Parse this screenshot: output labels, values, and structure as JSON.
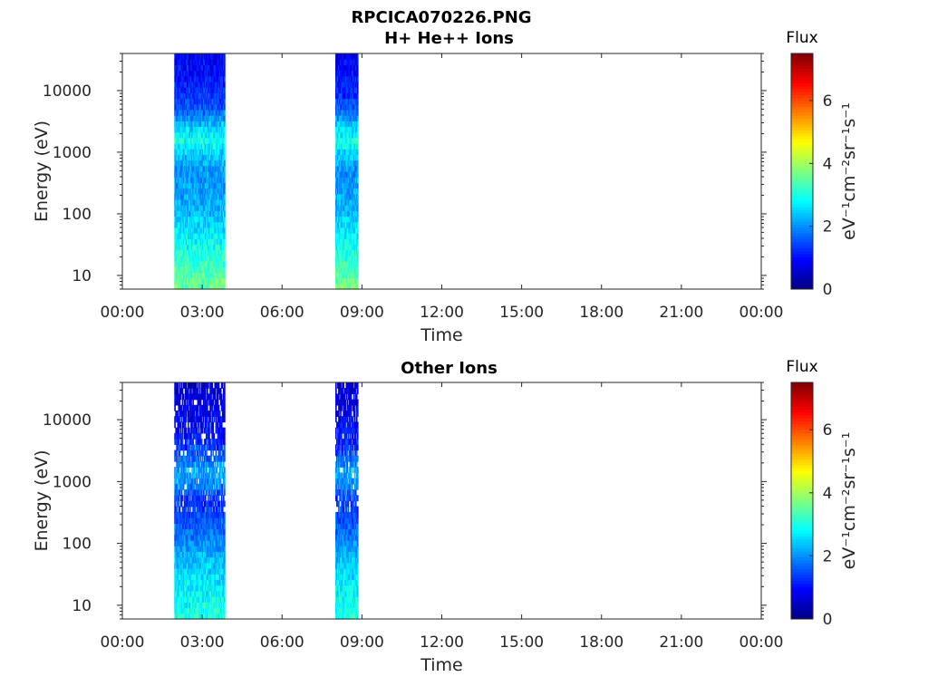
{
  "figure": {
    "title_line1": "RPCICA070226.PNG"
  },
  "colors": {
    "colormap": [
      "#00007f",
      "#0000ff",
      "#007fff",
      "#00ffff",
      "#7fff7f",
      "#ffff00",
      "#ff7f00",
      "#ff0000",
      "#7f0000"
    ]
  },
  "chart_data": [
    {
      "type": "heatmap",
      "title": "H+ He++ Ions",
      "xlabel": "Time",
      "ylabel": "Energy (eV)",
      "x_tick_labels": [
        "00:00",
        "03:00",
        "06:00",
        "09:00",
        "12:00",
        "15:00",
        "18:00",
        "21:00",
        "00:00"
      ],
      "x_range_hours": [
        0,
        24
      ],
      "y_scale": "log",
      "y_range": [
        6,
        40000
      ],
      "y_tick_values": [
        10,
        100,
        1000,
        10000
      ],
      "y_tick_labels": [
        "10",
        "100",
        "1000",
        "10000"
      ],
      "colorbar": {
        "title": "Flux",
        "unit_label": "eV⁻¹cm⁻²sr⁻¹s⁻¹",
        "range": [
          0,
          7.5
        ],
        "tick_values": [
          0,
          2,
          4,
          6
        ],
        "tick_labels": [
          "0",
          "2",
          "4",
          "6"
        ]
      },
      "data_intervals_hours": [
        [
          1.95,
          3.85
        ],
        [
          8.0,
          8.85
        ]
      ],
      "spectrum_profile": {
        "energy_eV": [
          8,
          15,
          30,
          60,
          120,
          250,
          500,
          1000,
          1500,
          2500,
          5000,
          10000,
          20000,
          35000
        ],
        "flux": [
          3.6,
          3.2,
          2.9,
          2.6,
          2.3,
          2.1,
          2.0,
          2.5,
          3.0,
          2.5,
          1.6,
          1.2,
          1.0,
          0.9
        ]
      },
      "sparsity_at_high_energy": false
    },
    {
      "type": "heatmap",
      "title": "Other Ions",
      "xlabel": "Time",
      "ylabel": "Energy (eV)",
      "x_tick_labels": [
        "00:00",
        "03:00",
        "06:00",
        "09:00",
        "12:00",
        "15:00",
        "18:00",
        "21:00",
        "00:00"
      ],
      "x_range_hours": [
        0,
        24
      ],
      "y_scale": "log",
      "y_range": [
        6,
        40000
      ],
      "y_tick_values": [
        10,
        100,
        1000,
        10000
      ],
      "y_tick_labels": [
        "10",
        "100",
        "1000",
        "10000"
      ],
      "colorbar": {
        "title": "Flux",
        "unit_label": "eV⁻¹cm⁻²sr⁻¹s⁻¹",
        "range": [
          0,
          7.5
        ],
        "tick_values": [
          0,
          2,
          4,
          6
        ],
        "tick_labels": [
          "0",
          "2",
          "4",
          "6"
        ]
      },
      "data_intervals_hours": [
        [
          1.95,
          3.85
        ],
        [
          8.0,
          8.85
        ]
      ],
      "spectrum_profile": {
        "energy_eV": [
          8,
          15,
          30,
          60,
          120,
          250,
          500,
          1000,
          1500,
          2500,
          5000,
          10000,
          20000,
          35000
        ],
        "flux": [
          3.0,
          2.8,
          2.6,
          2.3,
          1.9,
          1.5,
          1.3,
          2.0,
          2.2,
          1.6,
          1.1,
          0.9,
          0.7,
          0.6
        ]
      },
      "sparsity_at_high_energy": true
    }
  ]
}
